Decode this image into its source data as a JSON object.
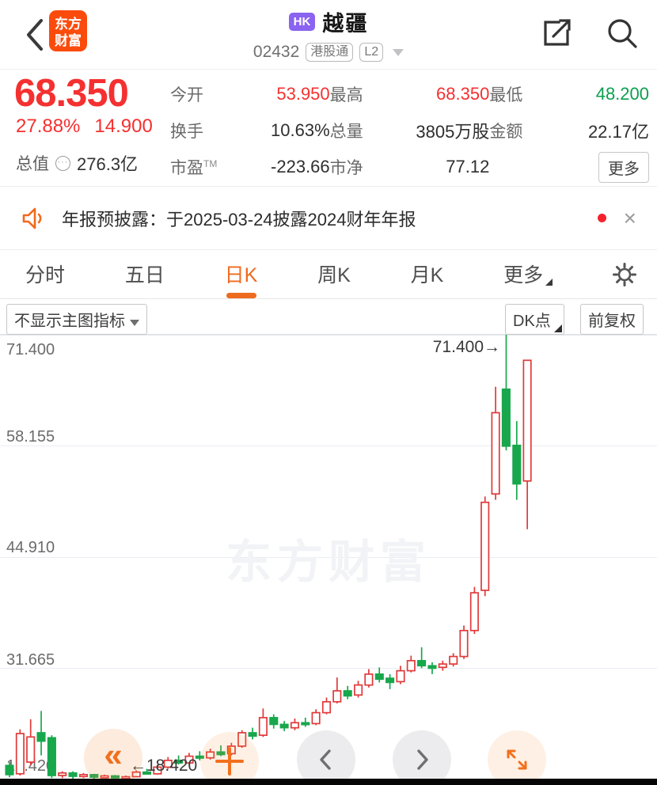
{
  "colors": {
    "up_red": "#f53030",
    "down_green": "#0aa04e",
    "accent": "#ee6a1f",
    "candle_up": "#e03a3a",
    "candle_down": "#18a74d",
    "badge_purple": "#8a63f0",
    "logo_orange": "#fb4b0c"
  },
  "header": {
    "logo_line1": "东方",
    "logo_line2": "财富",
    "market_badge": "HK",
    "title": "越疆",
    "code": "02432",
    "tag_connect": "港股通",
    "tag_level": "L2"
  },
  "quote": {
    "price": "68.350",
    "change_pct": "27.88%",
    "change_amt": "14.900",
    "cap_label": "总值",
    "cap_icon": "···",
    "cap_value": "276.3亿",
    "stats": [
      {
        "label": "今开",
        "value": "53.950",
        "tone": "red"
      },
      {
        "label": "最高",
        "value": "68.350",
        "tone": "red"
      },
      {
        "label": "最低",
        "value": "48.200",
        "tone": "green"
      },
      {
        "label": "换手",
        "value": "10.63%",
        "tone": "dark"
      },
      {
        "label": "总量",
        "value": "3805万股",
        "tone": "dark"
      },
      {
        "label": "金额",
        "value": "22.17亿",
        "tone": "dark"
      },
      {
        "label": "市盈",
        "sup": "TM",
        "value": "-223.66",
        "tone": "dark"
      },
      {
        "label": "市净",
        "value": "77.12",
        "tone": "dark"
      }
    ],
    "more_label": "更多"
  },
  "announcement": {
    "text": "年报预披露：于2025-03-24披露2024财年年报"
  },
  "tabs": {
    "items": [
      "分时",
      "五日",
      "日K",
      "周K",
      "月K",
      "更多"
    ],
    "active_index": 2
  },
  "toolbar": {
    "indicator": "不显示主图指标",
    "dk_label": "DK点",
    "adjust_label": "前复权"
  },
  "chart_data": {
    "type": "candlestick",
    "title": "越疆 02432 日K 前复权",
    "y_ticks": [
      "71.400",
      "58.155",
      "44.910",
      "31.665",
      "18.420"
    ],
    "y_range": [
      18.42,
      71.4
    ],
    "grid": true,
    "high_annotation": "71.400→",
    "low_annotation": "←18.420",
    "watermark": "东方财富",
    "today_ohlc": {
      "open": 53.95,
      "high": 68.35,
      "low": 48.2,
      "close": 68.35
    },
    "candles": [
      [
        20.0,
        20.4,
        18.6,
        18.9
      ],
      [
        19.0,
        24.3,
        18.8,
        23.8
      ],
      [
        20.4,
        25.5,
        20.0,
        23.4
      ],
      [
        23.9,
        26.5,
        21.2,
        22.9
      ],
      [
        23.3,
        23.6,
        18.5,
        18.8
      ],
      [
        18.8,
        19.3,
        18.5,
        19.1
      ],
      [
        19.1,
        19.3,
        18.42,
        18.7
      ],
      [
        18.7,
        19.1,
        18.5,
        18.9
      ],
      [
        18.9,
        19.0,
        18.42,
        18.6
      ],
      [
        18.6,
        18.9,
        18.5,
        18.75
      ],
      [
        18.75,
        18.85,
        18.45,
        18.55
      ],
      [
        18.55,
        18.8,
        18.42,
        18.65
      ],
      [
        18.65,
        19.4,
        18.6,
        19.2
      ],
      [
        19.2,
        19.6,
        18.9,
        19.0
      ],
      [
        19.0,
        20.1,
        18.9,
        19.8
      ],
      [
        19.8,
        21.0,
        19.6,
        20.6
      ],
      [
        20.6,
        21.2,
        20.1,
        20.3
      ],
      [
        20.3,
        21.5,
        20.1,
        21.1
      ],
      [
        21.1,
        21.7,
        20.6,
        20.9
      ],
      [
        20.9,
        22.0,
        20.7,
        21.6
      ],
      [
        21.6,
        22.4,
        21.1,
        21.3
      ],
      [
        21.4,
        22.7,
        21.2,
        22.3
      ],
      [
        22.3,
        24.2,
        22.1,
        23.9
      ],
      [
        23.9,
        24.5,
        23.1,
        23.5
      ],
      [
        23.6,
        26.8,
        23.4,
        25.7
      ],
      [
        25.7,
        26.1,
        24.4,
        24.9
      ],
      [
        24.9,
        25.3,
        24.1,
        24.5
      ],
      [
        24.5,
        25.6,
        24.2,
        25.1
      ],
      [
        25.1,
        25.7,
        24.6,
        24.9
      ],
      [
        25.0,
        26.7,
        24.8,
        26.3
      ],
      [
        26.3,
        28.1,
        26.1,
        27.6
      ],
      [
        27.6,
        30.5,
        27.4,
        28.9
      ],
      [
        28.9,
        29.5,
        27.9,
        28.3
      ],
      [
        28.4,
        30.1,
        28.1,
        29.6
      ],
      [
        29.6,
        31.5,
        29.3,
        30.9
      ],
      [
        30.9,
        31.7,
        29.9,
        30.3
      ],
      [
        30.4,
        30.9,
        29.1,
        29.9
      ],
      [
        30.0,
        31.9,
        29.7,
        31.3
      ],
      [
        31.3,
        33.1,
        31.1,
        32.5
      ],
      [
        32.5,
        34.1,
        31.6,
        31.9
      ],
      [
        31.9,
        32.3,
        30.9,
        31.6
      ],
      [
        31.7,
        32.5,
        31.3,
        32.1
      ],
      [
        32.1,
        33.4,
        31.8,
        33.0
      ],
      [
        33.0,
        36.7,
        32.7,
        36.1
      ],
      [
        36.1,
        41.3,
        35.7,
        40.6
      ],
      [
        40.9,
        52.1,
        40.2,
        51.4
      ],
      [
        52.4,
        65.2,
        51.7,
        62.1
      ],
      [
        64.9,
        71.4,
        57.6,
        58.1
      ],
      [
        58.2,
        61.1,
        51.7,
        53.6
      ],
      [
        53.95,
        68.35,
        48.2,
        68.35
      ]
    ]
  }
}
